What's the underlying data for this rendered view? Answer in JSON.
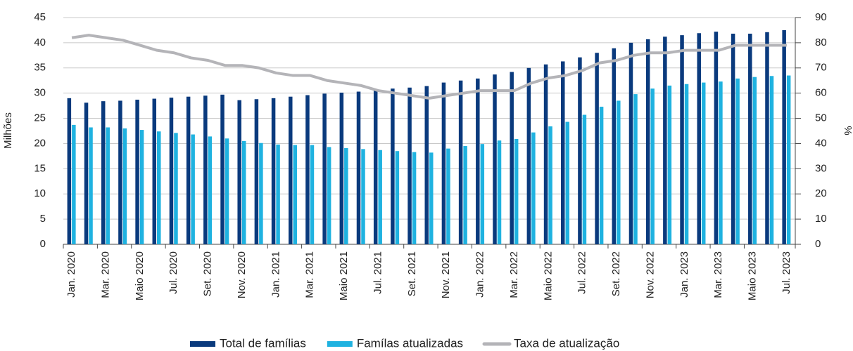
{
  "chart_data": {
    "type": "bar-line",
    "y_label": "Milhões",
    "y2_label": "%",
    "categories": [
      "Jan. 2020",
      null,
      "Mar. 2020",
      null,
      "Maio 2020",
      null,
      "Jul. 2020",
      null,
      "Set. 2020",
      null,
      "Nov. 2020",
      null,
      "Jan. 2021",
      null,
      "Mar. 2021",
      null,
      "Maio 2021",
      null,
      "Jul. 2021",
      null,
      "Set. 2021",
      null,
      "Nov. 2021",
      null,
      "Jan. 2022",
      null,
      "Mar. 2022",
      null,
      "Maio 2022",
      null,
      "Jul. 2022",
      null,
      "Set. 2022",
      null,
      "Nov. 2022",
      null,
      "Jan. 2023",
      null,
      "Mar. 2023",
      null,
      "Maio 2023",
      null,
      "Jul. 2023"
    ],
    "series": [
      {
        "name": "Total de famílias",
        "type": "bar",
        "color": "#0a3a7d",
        "values": [
          29.0,
          28.1,
          28.4,
          28.5,
          28.7,
          28.9,
          29.1,
          29.3,
          29.5,
          29.7,
          28.6,
          28.8,
          29.0,
          29.3,
          29.6,
          29.9,
          30.1,
          30.3,
          30.6,
          30.9,
          31.1,
          31.4,
          32.1,
          32.5,
          32.9,
          33.7,
          34.2,
          35.0,
          35.7,
          36.3,
          37.1,
          38.0,
          38.9,
          40.0,
          40.7,
          41.2,
          41.5,
          41.9,
          42.2,
          41.8,
          41.8,
          42.1,
          42.5
        ]
      },
      {
        "name": "Famílas atualizadas",
        "type": "bar",
        "color": "#1fb2e0",
        "values": [
          23.7,
          23.2,
          23.2,
          23.0,
          22.7,
          22.4,
          22.1,
          21.8,
          21.4,
          21.0,
          20.5,
          20.1,
          19.8,
          19.7,
          19.7,
          19.3,
          19.1,
          18.9,
          18.7,
          18.5,
          18.3,
          18.2,
          19.0,
          19.5,
          19.9,
          20.6,
          20.9,
          22.2,
          23.4,
          24.3,
          25.7,
          27.3,
          28.5,
          29.8,
          30.9,
          31.5,
          31.8,
          32.1,
          32.3,
          32.9,
          33.2,
          33.4,
          33.5
        ]
      },
      {
        "name": "Taxa de atualização",
        "type": "line",
        "axis": "y2",
        "color": "#b4b4b8",
        "values": [
          82,
          83,
          82,
          81,
          79,
          77,
          76,
          74,
          73,
          71,
          71,
          70,
          68,
          67,
          67,
          65,
          64,
          63,
          61,
          60,
          59,
          58,
          59,
          60,
          61,
          61,
          61,
          64,
          66,
          67,
          69,
          72,
          73,
          75,
          76,
          76,
          77,
          77,
          77,
          79,
          79,
          79,
          79
        ]
      }
    ],
    "ylim": [
      0,
      45
    ],
    "yticks": [
      0,
      5,
      10,
      15,
      20,
      25,
      30,
      35,
      40,
      45
    ],
    "y2lim": [
      0,
      90
    ],
    "y2ticks": [
      0,
      10,
      20,
      30,
      40,
      50,
      60,
      70,
      80,
      90
    ],
    "grid": true,
    "legend": "bottom"
  }
}
